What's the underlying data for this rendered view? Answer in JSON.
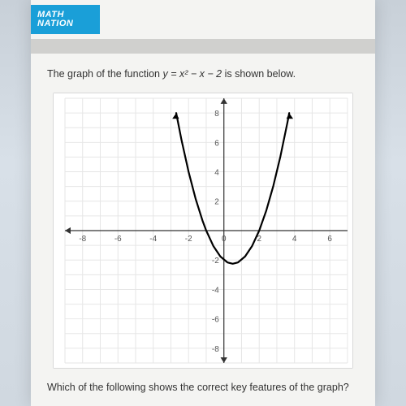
{
  "logo": {
    "line1": "MATH",
    "line2": "NATION"
  },
  "question": {
    "prefix": "The graph of the function ",
    "formula_lhs": "y",
    "formula_rhs": "x² − x − 2",
    "suffix": " is shown below."
  },
  "footer": "Which of the following shows the correct key features of the graph?",
  "chart": {
    "type": "line",
    "background_color": "#ffffff",
    "grid_color": "#e6e6e6",
    "axis_color": "#333333",
    "axis_width": 1.2,
    "curve_color": "#000000",
    "curve_width": 2.2,
    "xlim": [
      -9,
      7
    ],
    "ylim": [
      -9,
      9
    ],
    "xticks": [
      -8,
      -6,
      -4,
      -2,
      0,
      2,
      4,
      6
    ],
    "yticks": [
      -8,
      -6,
      -4,
      -2,
      0,
      2,
      4,
      6,
      8
    ],
    "tick_label_fontsize": 10,
    "tick_label_color": "#555555",
    "function": "y = x^2 - x - 2",
    "samples": [
      [
        -2.7,
        7.99
      ],
      [
        -2.4,
        6.16
      ],
      [
        -2.0,
        4.0
      ],
      [
        -1.6,
        2.16
      ],
      [
        -1.2,
        0.64
      ],
      [
        -1.0,
        0.0
      ],
      [
        -0.6,
        -1.04
      ],
      [
        -0.2,
        -1.76
      ],
      [
        0.2,
        -2.16
      ],
      [
        0.5,
        -2.25
      ],
      [
        0.8,
        -2.16
      ],
      [
        1.2,
        -1.76
      ],
      [
        1.6,
        -1.04
      ],
      [
        2.0,
        0.0
      ],
      [
        2.4,
        1.36
      ],
      [
        2.8,
        3.04
      ],
      [
        3.2,
        5.04
      ],
      [
        3.6,
        7.36
      ],
      [
        3.7,
        7.99
      ]
    ],
    "arrow_size": 7
  }
}
